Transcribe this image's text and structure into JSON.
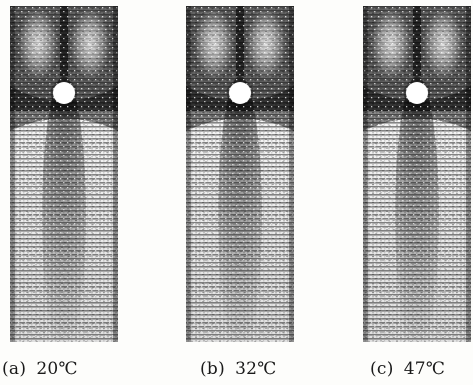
{
  "figure": {
    "panels": [
      {
        "label": "(a)",
        "temperature": "20℃"
      },
      {
        "label": "(b)",
        "temperature": "32℃"
      },
      {
        "label": "(c)",
        "temperature": "47℃"
      }
    ]
  }
}
